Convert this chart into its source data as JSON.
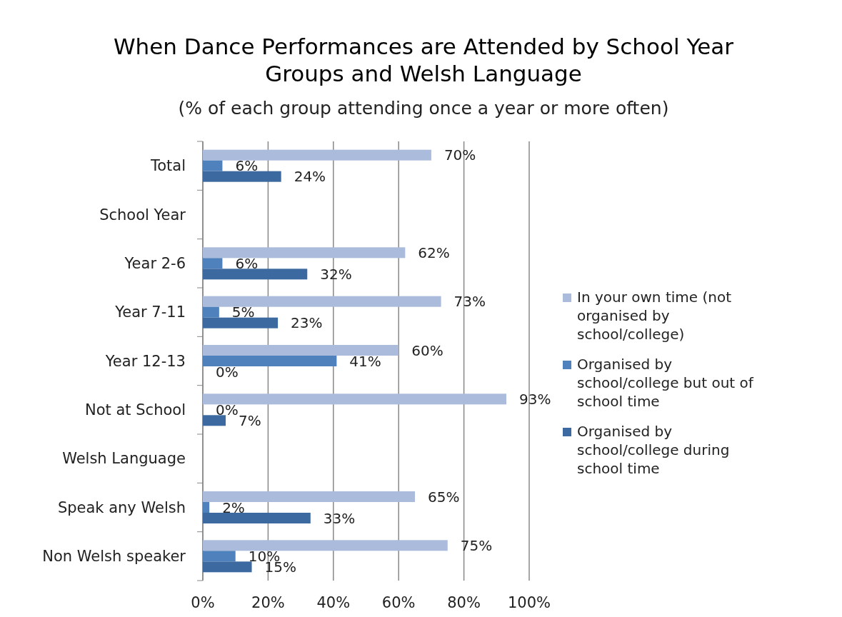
{
  "chart_data": {
    "type": "bar",
    "orientation": "horizontal",
    "title": "When Dance Performances are Attended by School Year Groups and Welsh Language",
    "subtitle": "(% of each group attending once a year or more often)",
    "categories": [
      "Total",
      "School Year",
      "Year 2-6",
      "Year 7-11",
      "Year 12-13",
      "Not at School",
      "Welsh Language",
      "Speak any Welsh",
      "Non Welsh speaker"
    ],
    "series": [
      {
        "name": "In your own time (not organised by school/college)",
        "color": "#abbbdc",
        "values": [
          70,
          null,
          62,
          73,
          60,
          93,
          null,
          65,
          75
        ],
        "value_labels": [
          "70%",
          null,
          "62%",
          "73%",
          "60%",
          "93%",
          null,
          "65%",
          "75%"
        ]
      },
      {
        "name": "Organised by school/college but out of school time",
        "color": "#4f81bd",
        "values": [
          6,
          null,
          6,
          5,
          41,
          0,
          null,
          2,
          10
        ],
        "value_labels": [
          "6%",
          null,
          "6%",
          "5%",
          "41%",
          "0%",
          null,
          "2%",
          "10%"
        ]
      },
      {
        "name": "Organised by school/college during school time",
        "color": "#3c6aa0",
        "values": [
          24,
          null,
          32,
          23,
          0,
          7,
          null,
          33,
          15
        ],
        "value_labels": [
          "24%",
          null,
          "32%",
          "23%",
          "0%",
          "7%",
          null,
          "33%",
          "15%"
        ]
      }
    ],
    "xlim": [
      0,
      100
    ],
    "xticks": [
      {
        "value": 0,
        "label": "0%"
      },
      {
        "value": 20,
        "label": "20%"
      },
      {
        "value": 40,
        "label": "40%"
      },
      {
        "value": 60,
        "label": "60%"
      },
      {
        "value": 80,
        "label": "80%"
      },
      {
        "value": 100,
        "label": "100%"
      }
    ],
    "grid": "x",
    "legend": "right"
  }
}
